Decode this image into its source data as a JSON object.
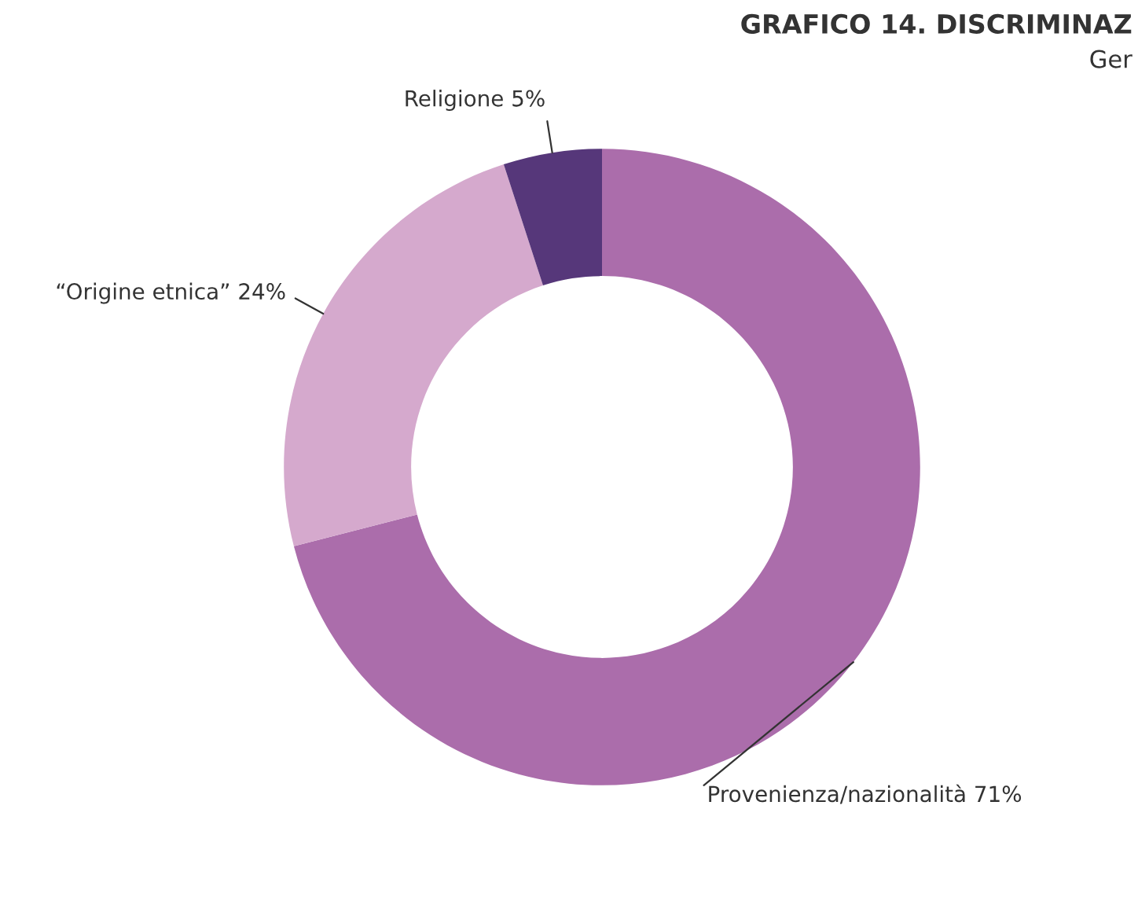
{
  "chart_data": {
    "type": "donut",
    "title": "GRAFICO 14. DISCRIMINAZ",
    "subtitle": "Ger",
    "categories": [
      "Provenienza/nazionalità",
      "“Origine etnica”",
      "Religione"
    ],
    "values": [
      71,
      24,
      5
    ],
    "value_labels": [
      "71%",
      "24%",
      "5%"
    ],
    "colors": [
      "#ab6dab",
      "#d5a9cd",
      "#56377a"
    ],
    "legend": false
  }
}
